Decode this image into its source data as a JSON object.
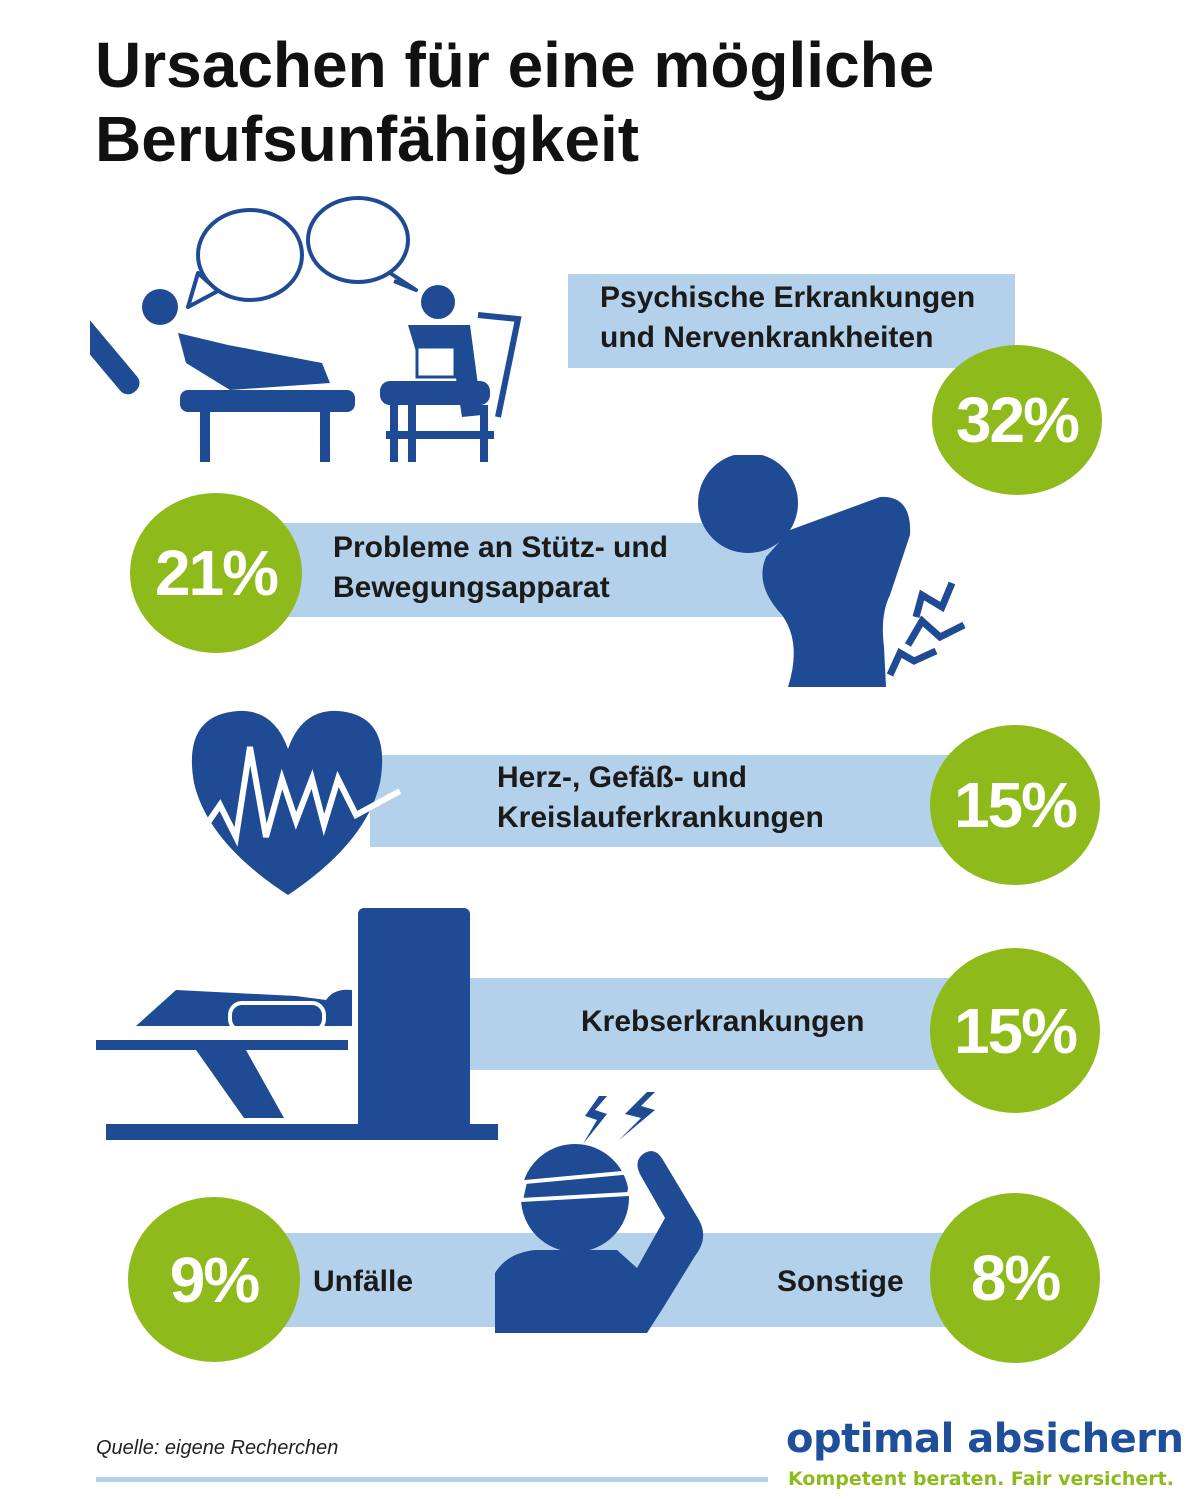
{
  "title": "Ursachen für eine mögliche Berufsunfähigkeit",
  "colors": {
    "accent_green": "#8fba1b",
    "band_blue": "#b3d1ea",
    "icon_blue": "#1f4a94",
    "brand_blue": "#1f4f9a"
  },
  "items": [
    {
      "line1": "Psychische Erkrankungen",
      "line2": "und Nervenkrankheiten",
      "value": "32%",
      "icon": "therapy-session-icon"
    },
    {
      "line1": "Probleme an Stütz- und",
      "line2": "Bewegungsapparat",
      "value": "21%",
      "icon": "back-pain-icon"
    },
    {
      "line1": "Herz-, Gefäß- und",
      "line2": "Kreislauferkrankungen",
      "value": "15%",
      "icon": "heart-pulse-icon"
    },
    {
      "line1": "Krebserkrankungen",
      "value": "15%",
      "icon": "radiation-therapy-icon"
    },
    {
      "line1": "Unfälle",
      "value": "9%",
      "icon": "head-injury-icon"
    },
    {
      "line1": "Sonstige",
      "value": "8%"
    }
  ],
  "source": "Quelle: eigene Recherchen",
  "brand": {
    "name": "optimal absichern",
    "tagline": "Kompetent beraten. Fair versichert."
  }
}
